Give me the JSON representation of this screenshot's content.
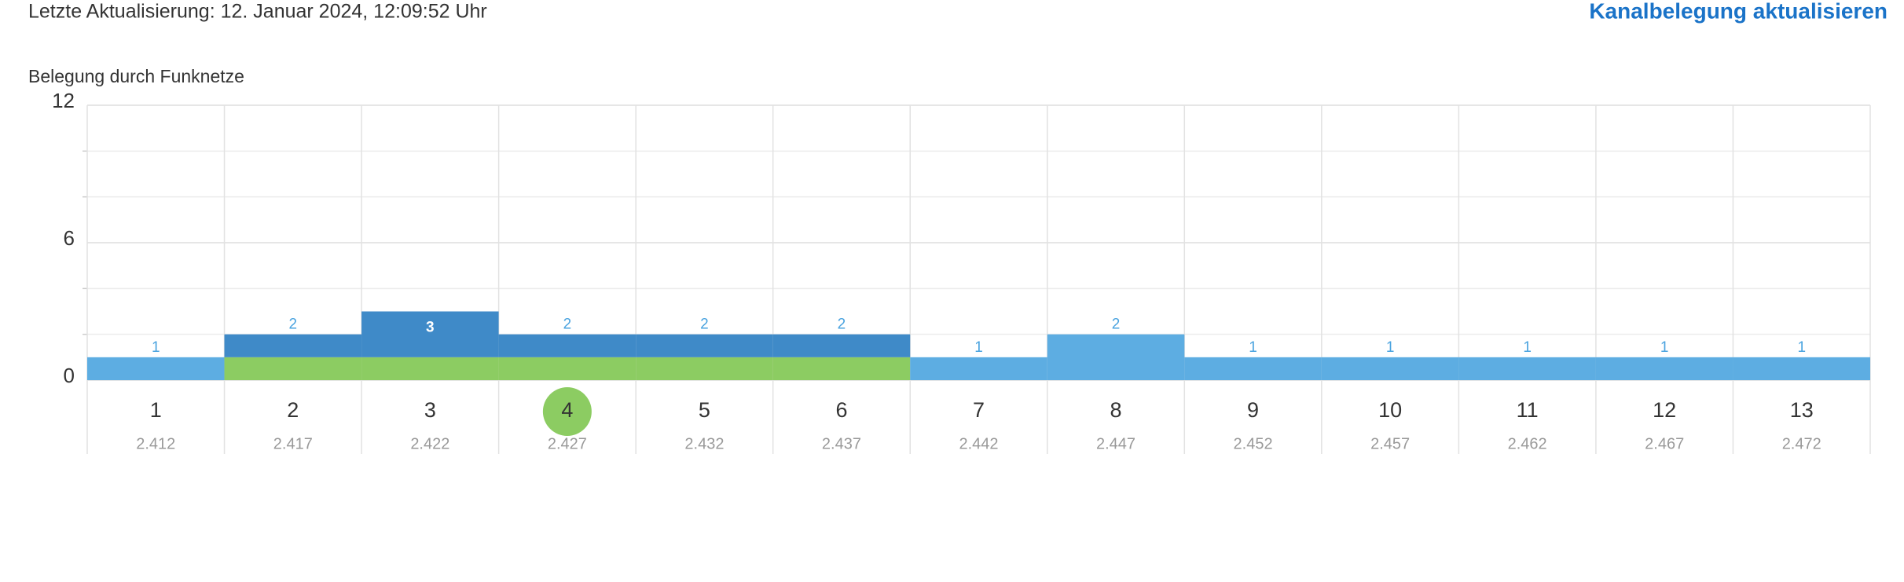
{
  "header": {
    "last_update": "Letzte Aktualisierung: 12. Januar 2024, 12:09:52 Uhr",
    "refresh_link": "Kanalbelegung aktualisieren"
  },
  "chart_data": {
    "type": "bar",
    "stacked": true,
    "title": "Belegung durch Funknetze",
    "categories": [
      "1",
      "2",
      "3",
      "4",
      "5",
      "6",
      "7",
      "8",
      "9",
      "10",
      "11",
      "12",
      "13"
    ],
    "frequencies": [
      2.412,
      2.417,
      2.422,
      2.427,
      2.432,
      2.437,
      2.442,
      2.447,
      2.452,
      2.457,
      2.462,
      2.467,
      2.472
    ],
    "active_channel": "4",
    "active_color": "#8ccc62",
    "series": [
      {
        "color": "#8ccc62",
        "values": [
          0,
          1,
          1,
          1,
          1,
          1,
          0,
          0,
          0,
          0,
          0,
          0,
          0
        ]
      },
      {
        "colors": [
          "#5dade2",
          "#3f8ac8",
          "#3f8ac8",
          "#3f8ac8",
          "#3f8ac8",
          "#3f8ac8",
          "#5dade2",
          "#5dade2",
          "#5dade2",
          "#5dade2",
          "#5dade2",
          "#5dade2",
          "#5dade2"
        ],
        "values": [
          1,
          1,
          2,
          1,
          1,
          1,
          1,
          2,
          1,
          1,
          1,
          1,
          1
        ]
      }
    ],
    "totals": [
      1,
      2,
      3,
      2,
      2,
      2,
      1,
      2,
      1,
      1,
      1,
      1,
      1
    ],
    "ylim": [
      0,
      12
    ],
    "yticks": [
      0,
      6,
      12
    ],
    "minor_yticks": [
      2,
      4,
      8,
      10
    ],
    "grid": true
  }
}
